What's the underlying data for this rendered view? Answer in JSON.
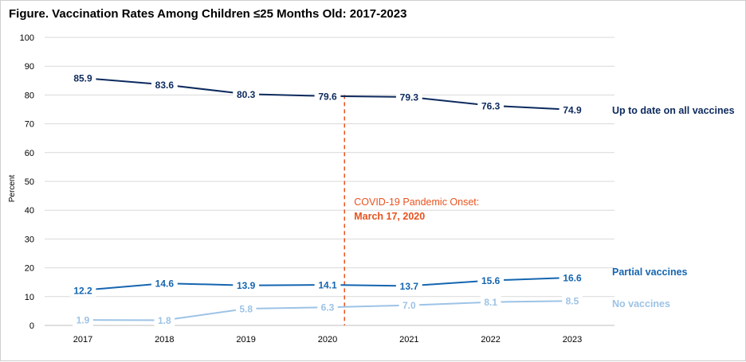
{
  "colors": {
    "up_to_date": "#0d2a5e",
    "partial": "#1565b0",
    "none": "#9dc3e6",
    "annotation": "#e8531f",
    "grid": "#d9d9d9",
    "axis": "#bfbfbf"
  },
  "chart_data": {
    "type": "line",
    "title": "Figure. Vaccination Rates Among Children ≤25 Months Old: 2017-2023",
    "xlabel": "",
    "ylabel": "Percent",
    "ylim": [
      0,
      100
    ],
    "yticks": [
      "0",
      "10",
      "20",
      "30",
      "40",
      "50",
      "60",
      "70",
      "80",
      "90",
      "100"
    ],
    "categories": [
      "2017",
      "2018",
      "2019",
      "2020",
      "2021",
      "2022",
      "2023"
    ],
    "grid": true,
    "series": [
      {
        "name": "Up to date on all vaccines",
        "color_key": "up_to_date",
        "values": [
          85.9,
          83.6,
          80.3,
          79.6,
          79.3,
          76.3,
          74.9
        ],
        "labels": [
          "85.9",
          "83.6",
          "80.3",
          "79.6",
          "79.3",
          "76.3",
          "74.9"
        ]
      },
      {
        "name": "Partial vaccines",
        "color_key": "partial",
        "values": [
          12.2,
          14.6,
          13.9,
          14.1,
          13.7,
          15.6,
          16.6
        ],
        "labels": [
          "12.2",
          "14.6",
          "13.9",
          "14.1",
          "13.7",
          "15.6",
          "16.6"
        ]
      },
      {
        "name": "No vaccines",
        "color_key": "none",
        "values": [
          1.9,
          1.8,
          5.8,
          6.3,
          7.0,
          8.1,
          8.5
        ],
        "labels": [
          "1.9",
          "1.8",
          "5.8",
          "6.3",
          "7.0",
          "8.1",
          "8.5"
        ]
      }
    ],
    "annotation": {
      "line1": "COVID-19 Pandemic Onset:",
      "line2": "March 17, 2020",
      "x_value": "2020-03-17"
    }
  }
}
